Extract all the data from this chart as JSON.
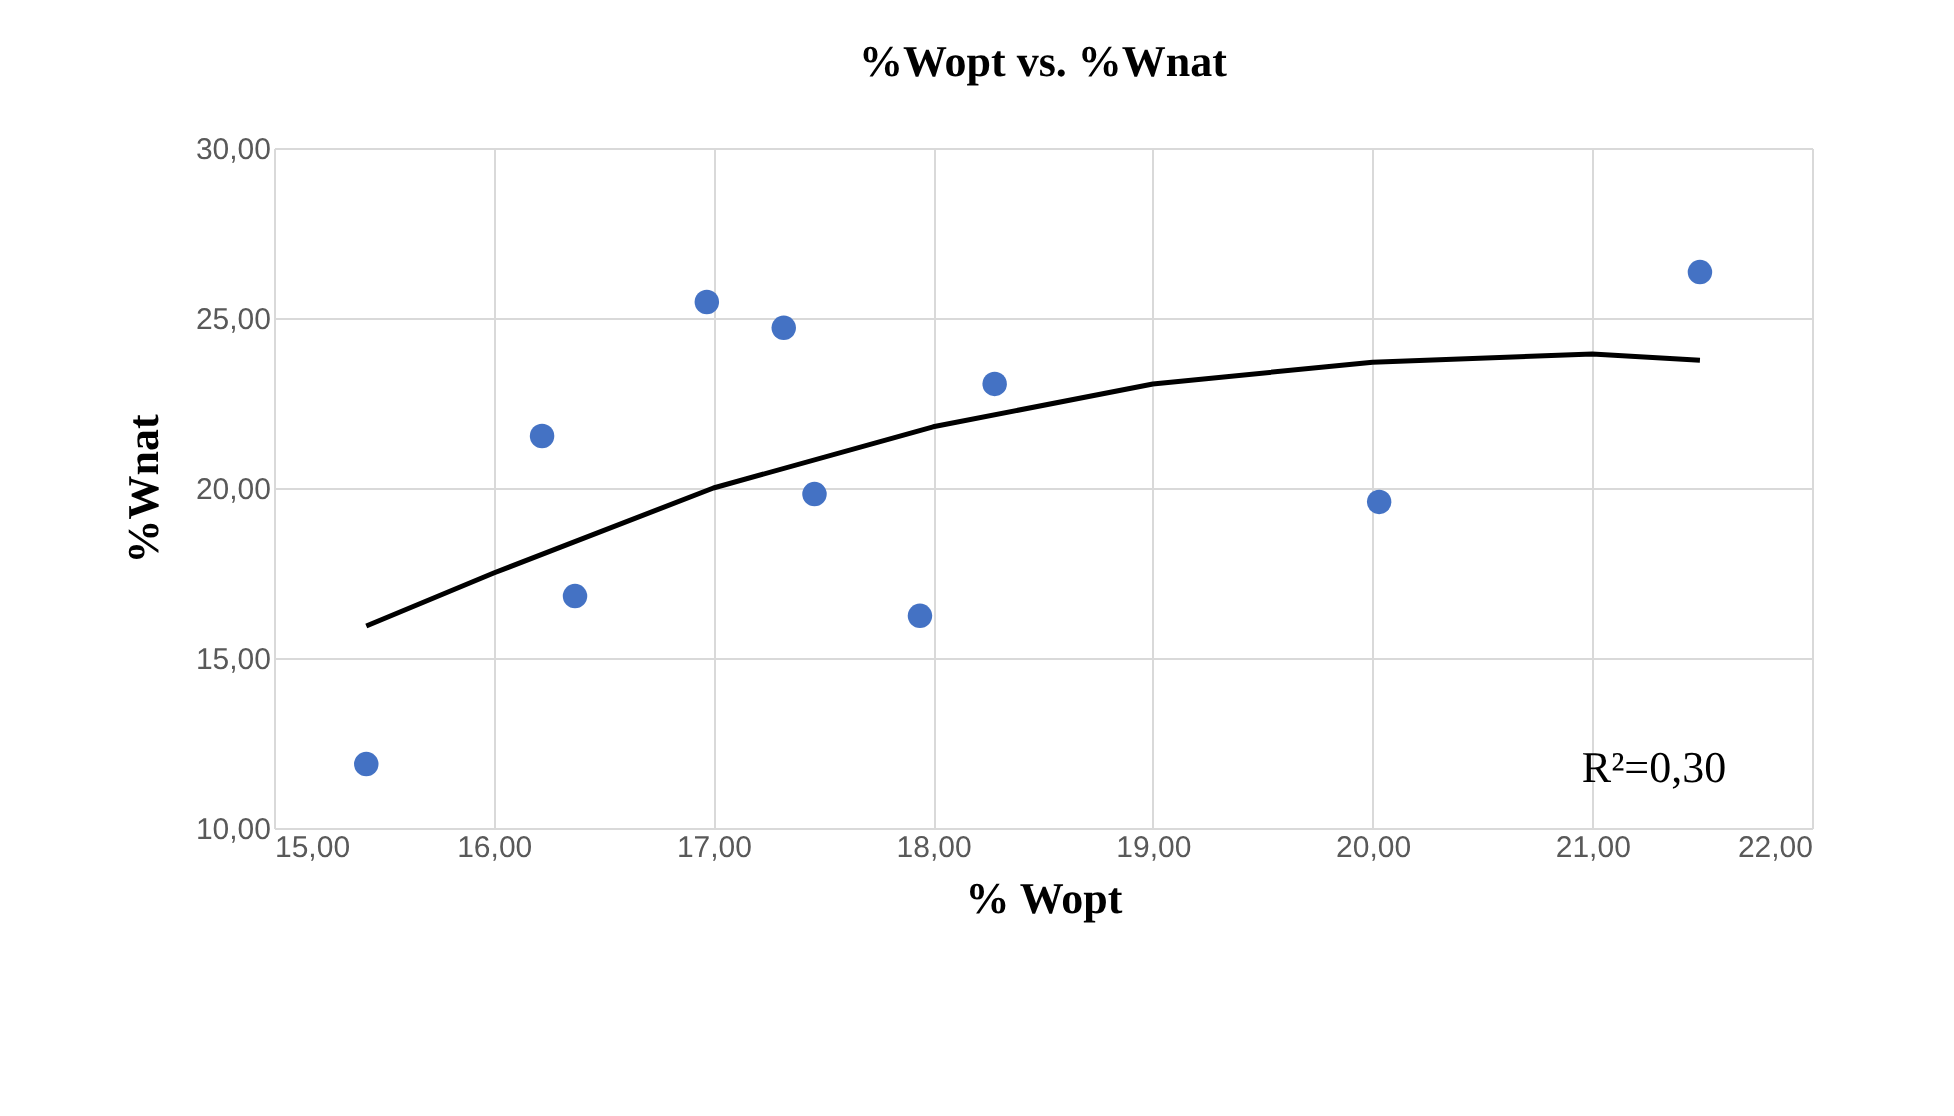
{
  "chart_data": {
    "type": "scatter",
    "title": "%Wopt  vs. %Wnat",
    "xlabel": "% Wopt",
    "ylabel": "%Wnat",
    "series": [
      {
        "marker": "circle",
        "color": "#4472c4",
        "x": [
          15.42,
          16.22,
          16.37,
          16.97,
          17.32,
          17.46,
          17.94,
          18.28,
          20.03,
          21.49
        ],
        "values": [
          11.88,
          21.53,
          16.82,
          25.47,
          24.71,
          19.82,
          16.24,
          23.06,
          19.59,
          26.35
        ]
      },
      {
        "type": "line",
        "color": "#000000",
        "x": [
          15.42,
          16.0,
          17.0,
          18.0,
          19.0,
          20.0,
          21.0,
          21.49
        ],
        "values": [
          15.94,
          17.5,
          20.0,
          21.8,
          23.06,
          23.7,
          23.94,
          23.76
        ]
      }
    ],
    "xlim": [
      15,
      22
    ],
    "ylim": [
      10,
      30
    ],
    "xticks": [
      {
        "value": 15,
        "label": "15,00"
      },
      {
        "value": 16,
        "label": "16,00"
      },
      {
        "value": 17,
        "label": "17,00"
      },
      {
        "value": 18,
        "label": "18,00"
      },
      {
        "value": 19,
        "label": "19,00"
      },
      {
        "value": 20,
        "label": "20,00"
      },
      {
        "value": 21,
        "label": "21,00"
      },
      {
        "value": 22,
        "label": "22,00"
      }
    ],
    "yticks": [
      {
        "value": 10,
        "label": "10,00"
      },
      {
        "value": 15,
        "label": "15,00"
      },
      {
        "value": 20,
        "label": "20,00"
      },
      {
        "value": 25,
        "label": "25,00"
      },
      {
        "value": 30,
        "label": "30,00"
      }
    ],
    "grid": true,
    "legend": false,
    "annotations": [
      "R²=0,30"
    ]
  }
}
